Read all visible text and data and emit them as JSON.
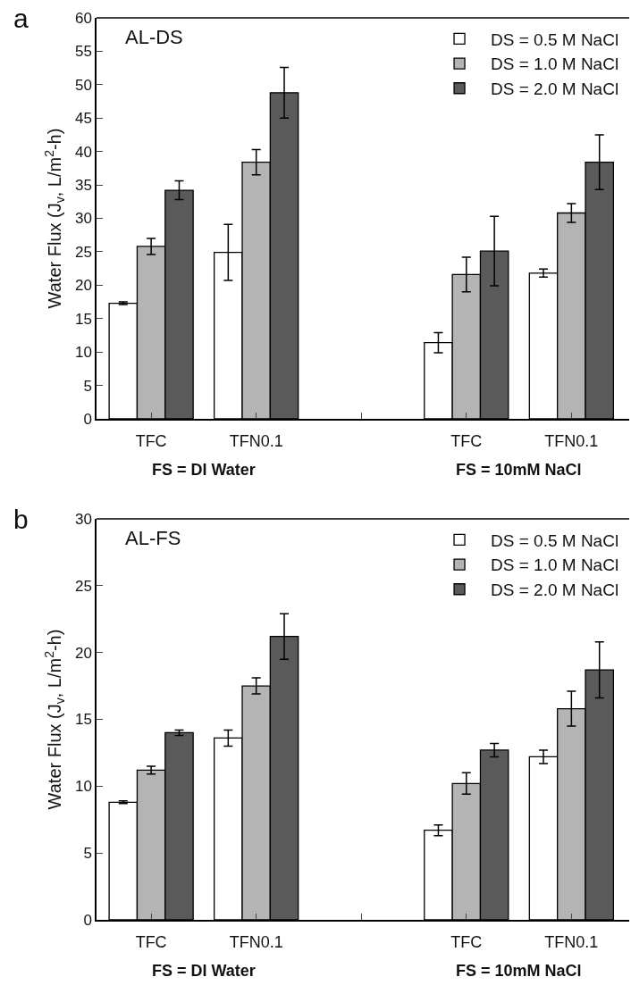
{
  "chart_data": [
    {
      "type": "bar",
      "ylabel": "Water Flux (J$_{v}$, L/m$^{2}$-h)",
      "categories": [
        "TFC",
        "TFN0.1",
        null,
        "TFC",
        "TFN0.1"
      ],
      "annotations": [
        "a",
        "AL-DS",
        "FS = DI Water",
        "FS = 10mM NaCl"
      ],
      "series": [
        {
          "name": "DS = 0.5 M NaCl",
          "color": "#ffffff",
          "values": [
            17.3,
            24.9,
            null,
            11.4,
            21.8
          ],
          "errors": [
            0.2,
            4.2,
            null,
            1.5,
            0.6
          ]
        },
        {
          "name": "DS = 1.0 M NaCl",
          "color": "#b4b4b4",
          "values": [
            25.8,
            38.4,
            null,
            21.6,
            30.8
          ],
          "errors": [
            1.2,
            1.9,
            null,
            2.6,
            1.4
          ]
        },
        {
          "name": "DS = 2.0 M NaCl",
          "color": "#5a5a5a",
          "values": [
            34.2,
            48.8,
            null,
            25.1,
            38.4
          ],
          "errors": [
            1.4,
            3.8,
            null,
            5.2,
            4.1
          ]
        }
      ],
      "ylim": [
        0,
        60
      ],
      "yticks": [
        0,
        5,
        10,
        15,
        20,
        25,
        30,
        35,
        40,
        45,
        50,
        55,
        60
      ],
      "grid": false,
      "legend": "top right"
    },
    {
      "type": "bar",
      "ylabel": "Water Flux (J$_{v}$, L/m$^{2}$-h)",
      "categories": [
        "TFC",
        "TFN0.1",
        null,
        "TFC",
        "TFN0.1"
      ],
      "annotations": [
        "b",
        "AL-FS",
        "FS = DI Water",
        "FS = 10mM NaCl"
      ],
      "series": [
        {
          "name": "DS = 0.5 M NaCl",
          "color": "#ffffff",
          "values": [
            8.8,
            13.6,
            null,
            6.7,
            12.2
          ],
          "errors": [
            0.1,
            0.6,
            null,
            0.4,
            0.5
          ]
        },
        {
          "name": "DS = 1.0 M NaCl",
          "color": "#b4b4b4",
          "values": [
            11.2,
            17.5,
            null,
            10.2,
            15.8
          ],
          "errors": [
            0.3,
            0.6,
            null,
            0.8,
            1.3
          ]
        },
        {
          "name": "DS = 2.0 M NaCl",
          "color": "#5a5a5a",
          "values": [
            14.0,
            21.2,
            null,
            12.7,
            18.7
          ],
          "errors": [
            0.2,
            1.7,
            null,
            0.5,
            2.1
          ]
        }
      ],
      "ylim": [
        0,
        30
      ],
      "yticks": [
        0,
        5,
        10,
        15,
        20,
        25,
        30
      ],
      "grid": false,
      "legend": "top right"
    }
  ]
}
